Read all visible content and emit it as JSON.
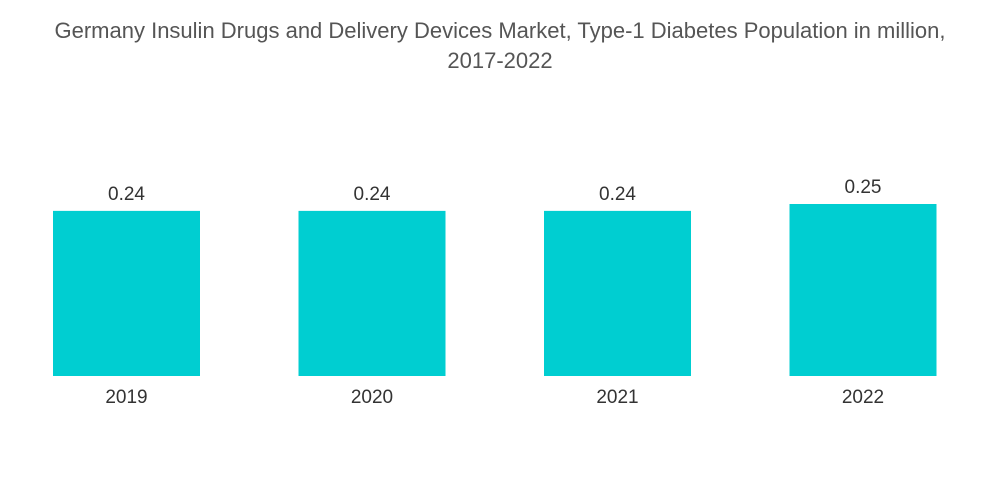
{
  "title": {
    "line1": "Germany Insulin Drugs and Delivery Devices Market, Type-1 Diabetes Population in million,",
    "line2": "2017-2022"
  },
  "colors": {
    "bar": "#00CED1"
  },
  "chart_data": {
    "type": "bar",
    "title": "Germany Insulin Drugs and Delivery Devices Market, Type-1 Diabetes Population in million, 2017-2022",
    "categories": [
      "2019",
      "2020",
      "2021",
      "2022"
    ],
    "values": [
      0.24,
      0.24,
      0.24,
      0.25
    ],
    "value_labels": [
      "0.24",
      "0.24",
      "0.24",
      "0.25"
    ],
    "xlabel": "",
    "ylabel": "",
    "ylim": [
      0,
      0.25
    ],
    "grid": false,
    "legend": "none"
  }
}
